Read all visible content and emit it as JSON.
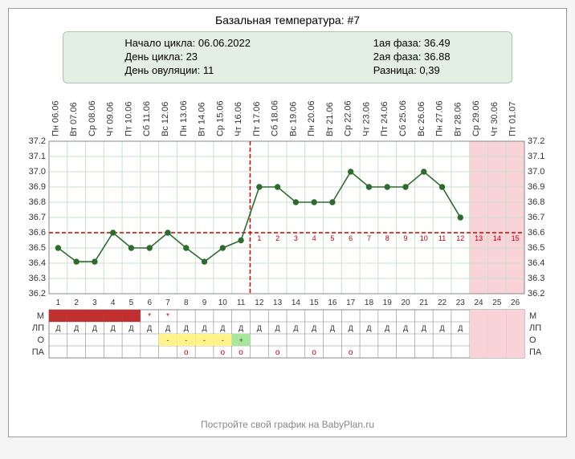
{
  "title": "Базальная температура: #7",
  "info": {
    "left": [
      "Начало цикла: 06.06.2022",
      "День цикла: 23",
      "День овуляции: 11"
    ],
    "right": [
      "1ая фаза: 36.49",
      "2ая фаза: 36.88",
      "Разница: 0,39"
    ]
  },
  "footer": "Постройте свой график на BabyPlan.ru",
  "chart": {
    "type": "line",
    "ylim": [
      36.2,
      37.2
    ],
    "ytick_step": 0.1,
    "days": 26,
    "x_labels": [
      "Пн 06.06",
      "Вт 07.06",
      "Ср 08.06",
      "Чт 09.06",
      "Пт 10.06",
      "Сб 11.06",
      "Вс 12.06",
      "Пн 13.06",
      "Вт 14.06",
      "Ср 15.06",
      "Чт 16.06",
      "Пт 17.06",
      "Сб 18.06",
      "Вс 19.06",
      "Пн 20.06",
      "Вт 21.06",
      "Ср 22.06",
      "Чт 23.06",
      "Пт 24.06",
      "Сб 25.06",
      "Вс 26.06",
      "Пн 27.06",
      "Вт 28.06",
      "Ср 29.06",
      "Чт 30.06",
      "Пт 01.07"
    ],
    "values": [
      36.5,
      36.41,
      36.41,
      36.6,
      36.5,
      36.5,
      36.6,
      36.5,
      36.41,
      36.5,
      36.55,
      36.9,
      36.9,
      36.8,
      36.8,
      36.8,
      37.0,
      36.9,
      36.9,
      36.9,
      37.0,
      36.9,
      36.7,
      null,
      null,
      null
    ],
    "crosshair_x_day": 11,
    "crosshair_y_temp": 36.6,
    "dpo_labels": [
      "1",
      "2",
      "3",
      "4",
      "5",
      "6",
      "7",
      "8",
      "9",
      "10",
      "11",
      "12",
      "13",
      "14",
      "15"
    ],
    "menstruation_days": [
      1,
      2,
      3,
      4,
      5
    ],
    "asterisk_days": [
      6,
      7
    ],
    "d_days": [
      1,
      2,
      3,
      4,
      5,
      6,
      7,
      8,
      9,
      10,
      11,
      12,
      13,
      14,
      15,
      16,
      17,
      18,
      19,
      20,
      21,
      22,
      23
    ],
    "o_minus_days": [
      7,
      8,
      9,
      10
    ],
    "o_plus_days": [
      11
    ],
    "pa_o_days": [
      8,
      10,
      11,
      13,
      15,
      17
    ],
    "colors": {
      "grid": "#c9e0c9",
      "bg_cell": "#eef7ee",
      "line": "#2e6b2e",
      "point_fill": "#2e6b2e",
      "crosshair": "#cc0000",
      "mens": "#c03030",
      "star": "#c03030",
      "o_minus_bg": "#fff38a",
      "o_plus_bg": "#a8e89a",
      "future_bg": "#f8d4d8",
      "border": "#888888"
    },
    "row_labels": [
      "М",
      "ЛП",
      "О",
      "ПА"
    ],
    "marker_d": "Д",
    "marker_minus": "-",
    "marker_plus": "+",
    "marker_star": "*",
    "marker_o": "o"
  }
}
